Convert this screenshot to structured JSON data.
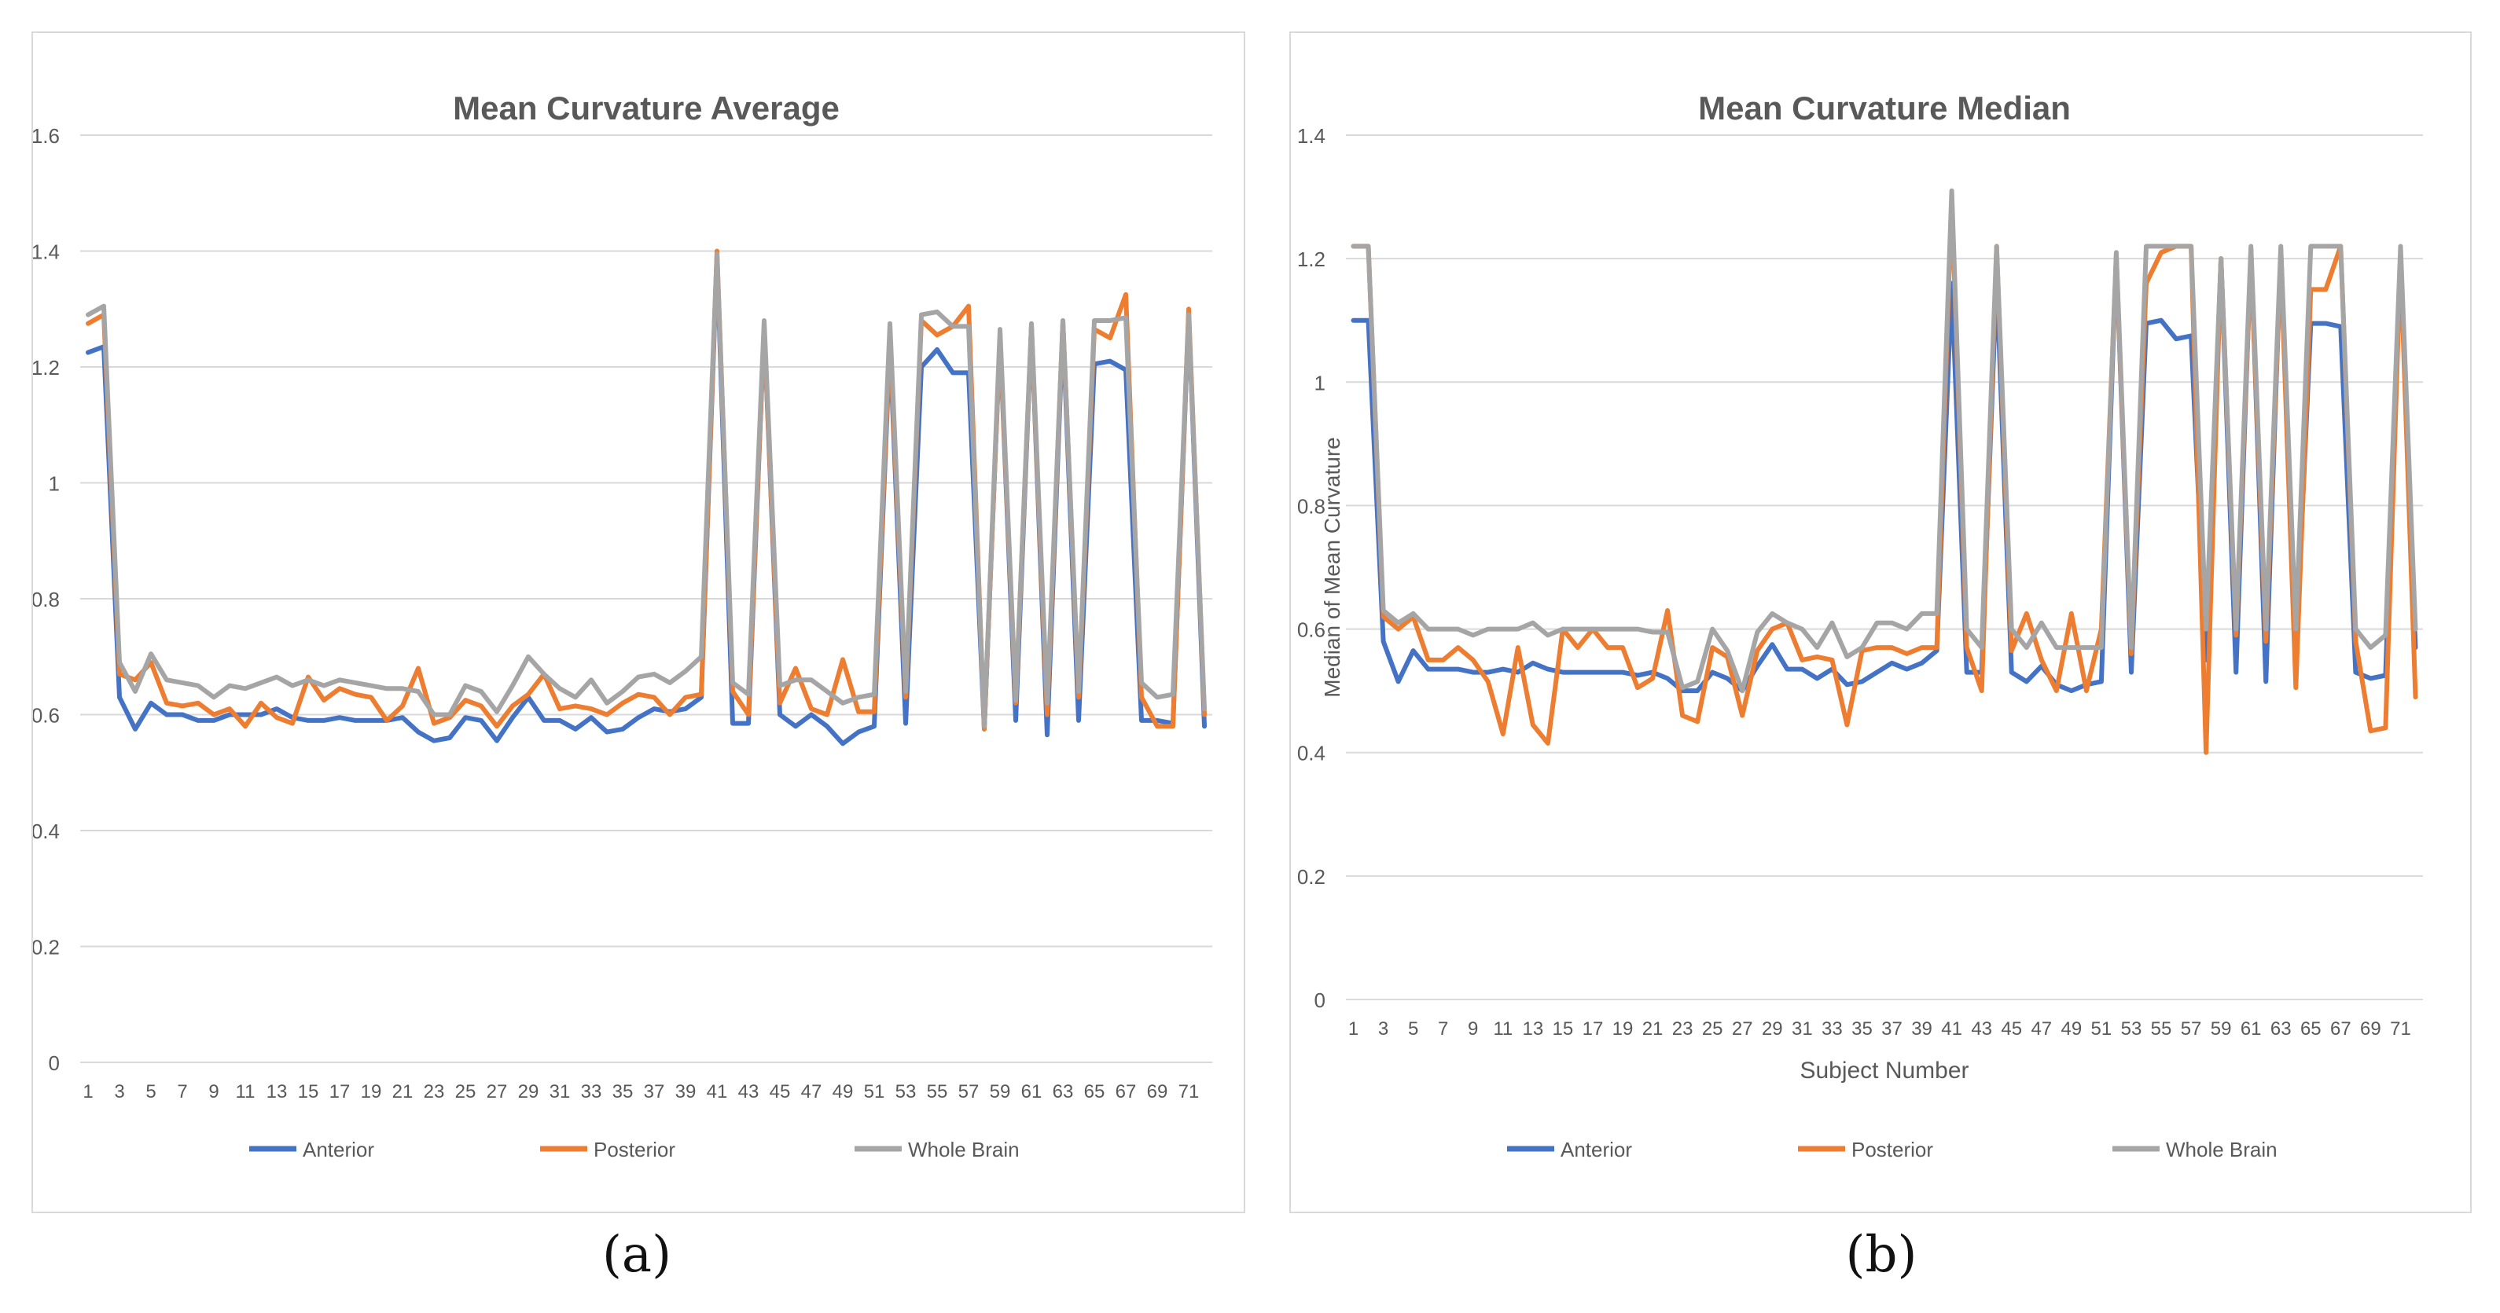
{
  "chart_data": [
    {
      "type": "line",
      "title": "Mean Curvature Average",
      "xlabel": "",
      "ylabel": "",
      "ylim": [
        0,
        1.6
      ],
      "yticks": [
        "0",
        "0.2",
        "0.4",
        "0.6",
        "0.8",
        "1",
        "1.2",
        "1.4",
        "1.6"
      ],
      "x": [
        1,
        2,
        3,
        4,
        5,
        6,
        7,
        8,
        9,
        10,
        11,
        12,
        13,
        14,
        15,
        16,
        17,
        18,
        19,
        20,
        21,
        22,
        23,
        24,
        25,
        26,
        27,
        28,
        29,
        30,
        31,
        32,
        33,
        34,
        35,
        36,
        37,
        38,
        39,
        40,
        41,
        42,
        43,
        44,
        45,
        46,
        47,
        48,
        49,
        50,
        51,
        52,
        53,
        54,
        55,
        56,
        57,
        58,
        59,
        60,
        61,
        62,
        63,
        64,
        65,
        66,
        67,
        68,
        69,
        70,
        71,
        72
      ],
      "xtick_labels": [
        "1",
        "3",
        "5",
        "7",
        "9",
        "11",
        "13",
        "15",
        "17",
        "19",
        "21",
        "23",
        "25",
        "27",
        "29",
        "31",
        "33",
        "35",
        "37",
        "39",
        "41",
        "43",
        "45",
        "47",
        "49",
        "51",
        "53",
        "55",
        "57",
        "59",
        "61",
        "63",
        "65",
        "67",
        "69",
        "71"
      ],
      "legend_position": "bottom",
      "grid": true,
      "series": [
        {
          "name": "Anterior",
          "color": "#4472c4",
          "values": [
            1.225,
            1.235,
            0.63,
            0.575,
            0.62,
            0.6,
            0.6,
            0.59,
            0.59,
            0.6,
            0.6,
            0.6,
            0.61,
            0.595,
            0.59,
            0.59,
            0.595,
            0.59,
            0.59,
            0.59,
            0.595,
            0.57,
            0.555,
            0.56,
            0.595,
            0.59,
            0.555,
            0.595,
            0.63,
            0.59,
            0.59,
            0.575,
            0.595,
            0.57,
            0.575,
            0.595,
            0.61,
            0.605,
            0.61,
            0.63,
            1.39,
            0.585,
            0.585,
            1.27,
            0.6,
            0.58,
            0.6,
            0.58,
            0.55,
            0.57,
            0.58,
            1.24,
            0.585,
            1.2,
            1.23,
            1.19,
            1.19,
            0.575,
            1.25,
            0.59,
            1.27,
            0.565,
            1.27,
            0.59,
            1.205,
            1.21,
            1.195,
            0.59,
            0.59,
            0.585,
            1.29,
            0.58
          ]
        },
        {
          "name": "Posterior",
          "color": "#ed7d31",
          "values": [
            1.275,
            1.29,
            0.67,
            0.66,
            0.69,
            0.62,
            0.615,
            0.62,
            0.6,
            0.61,
            0.58,
            0.62,
            0.595,
            0.585,
            0.665,
            0.625,
            0.645,
            0.635,
            0.63,
            0.59,
            0.615,
            0.68,
            0.585,
            0.595,
            0.625,
            0.615,
            0.58,
            0.615,
            0.635,
            0.67,
            0.61,
            0.615,
            0.61,
            0.6,
            0.62,
            0.635,
            0.63,
            0.6,
            0.63,
            0.635,
            1.4,
            0.64,
            0.6,
            1.27,
            0.62,
            0.68,
            0.61,
            0.6,
            0.695,
            0.605,
            0.605,
            1.25,
            0.63,
            1.28,
            1.255,
            1.27,
            1.305,
            0.575,
            1.25,
            0.62,
            1.27,
            0.6,
            1.28,
            0.63,
            1.265,
            1.25,
            1.325,
            0.63,
            0.58,
            0.58,
            1.3,
            0.6
          ]
        },
        {
          "name": "Whole Brain",
          "color": "#a5a5a5",
          "values": [
            1.29,
            1.305,
            0.69,
            0.64,
            0.705,
            0.66,
            0.655,
            0.65,
            0.63,
            0.65,
            0.645,
            0.655,
            0.665,
            0.65,
            0.66,
            0.65,
            0.66,
            0.655,
            0.65,
            0.645,
            0.645,
            0.64,
            0.6,
            0.6,
            0.65,
            0.64,
            0.605,
            0.65,
            0.7,
            0.67,
            0.645,
            0.63,
            0.66,
            0.62,
            0.64,
            0.665,
            0.67,
            0.655,
            0.675,
            0.7,
            1.395,
            0.655,
            0.635,
            1.28,
            0.65,
            0.66,
            0.66,
            0.64,
            0.62,
            0.63,
            0.635,
            1.275,
            0.64,
            1.29,
            1.295,
            1.27,
            1.27,
            0.58,
            1.265,
            0.625,
            1.275,
            0.62,
            1.28,
            0.64,
            1.28,
            1.28,
            1.285,
            0.655,
            0.63,
            0.635,
            1.29,
            0.61
          ]
        }
      ]
    },
    {
      "type": "line",
      "title": "Mean Curvature Median",
      "xlabel": "Subject Number",
      "ylabel": "Median of Mean Curvature",
      "ylim": [
        0,
        1.4
      ],
      "yticks": [
        "0",
        "0.2",
        "0.4",
        "0.6",
        "0.8",
        "1",
        "1.2",
        "1.4"
      ],
      "x": [
        1,
        2,
        3,
        4,
        5,
        6,
        7,
        8,
        9,
        10,
        11,
        12,
        13,
        14,
        15,
        16,
        17,
        18,
        19,
        20,
        21,
        22,
        23,
        24,
        25,
        26,
        27,
        28,
        29,
        30,
        31,
        32,
        33,
        34,
        35,
        36,
        37,
        38,
        39,
        40,
        41,
        42,
        43,
        44,
        45,
        46,
        47,
        48,
        49,
        50,
        51,
        52,
        53,
        54,
        55,
        56,
        57,
        58,
        59,
        60,
        61,
        62,
        63,
        64,
        65,
        66,
        67,
        68,
        69,
        70,
        71,
        72
      ],
      "xtick_labels": [
        "1",
        "3",
        "5",
        "7",
        "9",
        "11",
        "13",
        "15",
        "17",
        "19",
        "21",
        "23",
        "25",
        "27",
        "29",
        "31",
        "33",
        "35",
        "37",
        "39",
        "41",
        "43",
        "45",
        "47",
        "49",
        "51",
        "53",
        "55",
        "57",
        "59",
        "61",
        "63",
        "65",
        "67",
        "69",
        "71"
      ],
      "legend_position": "bottom",
      "grid": true,
      "series": [
        {
          "name": "Anterior",
          "color": "#4472c4",
          "values": [
            1.1,
            1.1,
            0.58,
            0.515,
            0.565,
            0.535,
            0.535,
            0.535,
            0.53,
            0.53,
            0.535,
            0.53,
            0.545,
            0.535,
            0.53,
            0.53,
            0.53,
            0.53,
            0.53,
            0.525,
            0.53,
            0.52,
            0.5,
            0.5,
            0.53,
            0.52,
            0.5,
            0.54,
            0.575,
            0.535,
            0.535,
            0.52,
            0.535,
            0.51,
            0.515,
            0.53,
            0.545,
            0.535,
            0.545,
            0.565,
            1.16,
            0.53,
            0.53,
            1.17,
            0.53,
            0.515,
            0.54,
            0.51,
            0.5,
            0.51,
            0.515,
            1.205,
            0.53,
            1.095,
            1.1,
            1.07,
            1.075,
            0.55,
            1.2,
            0.53,
            1.215,
            0.515,
            1.215,
            0.555,
            1.095,
            1.095,
            1.09,
            0.53,
            0.52,
            0.525,
            1.2,
            0.57
          ]
        },
        {
          "name": "Posterior",
          "color": "#ed7d31",
          "values": [
            1.22,
            1.22,
            0.62,
            0.6,
            0.62,
            0.55,
            0.55,
            0.57,
            0.55,
            0.515,
            0.43,
            0.57,
            0.445,
            0.415,
            0.6,
            0.57,
            0.6,
            0.57,
            0.57,
            0.505,
            0.52,
            0.63,
            0.46,
            0.45,
            0.57,
            0.555,
            0.46,
            0.565,
            0.6,
            0.61,
            0.55,
            0.555,
            0.55,
            0.445,
            0.565,
            0.57,
            0.57,
            0.56,
            0.57,
            0.57,
            1.3,
            0.57,
            0.5,
            1.22,
            0.565,
            0.625,
            0.55,
            0.5,
            0.625,
            0.5,
            0.6,
            1.2,
            0.56,
            1.16,
            1.21,
            1.22,
            1.22,
            0.4,
            1.2,
            0.59,
            1.2,
            0.58,
            1.2,
            0.505,
            1.15,
            1.15,
            1.22,
            0.58,
            0.435,
            0.44,
            1.2,
            0.49
          ]
        },
        {
          "name": "Whole Brain",
          "color": "#a5a5a5",
          "values": [
            1.22,
            1.22,
            0.63,
            0.61,
            0.625,
            0.6,
            0.6,
            0.6,
            0.59,
            0.6,
            0.6,
            0.6,
            0.61,
            0.59,
            0.6,
            0.6,
            0.6,
            0.6,
            0.6,
            0.6,
            0.595,
            0.595,
            0.505,
            0.515,
            0.6,
            0.565,
            0.5,
            0.595,
            0.625,
            0.61,
            0.6,
            0.57,
            0.61,
            0.555,
            0.57,
            0.61,
            0.61,
            0.6,
            0.625,
            0.625,
            1.31,
            0.6,
            0.57,
            1.22,
            0.6,
            0.57,
            0.61,
            0.57,
            0.57,
            0.57,
            0.57,
            1.21,
            0.57,
            1.22,
            1.22,
            1.22,
            1.22,
            0.6,
            1.2,
            0.6,
            1.22,
            0.6,
            1.22,
            0.6,
            1.22,
            1.22,
            1.22,
            0.6,
            0.57,
            0.59,
            1.22,
            0.6
          ]
        }
      ]
    }
  ],
  "captions": {
    "a": "(a)",
    "b": "(b)"
  }
}
